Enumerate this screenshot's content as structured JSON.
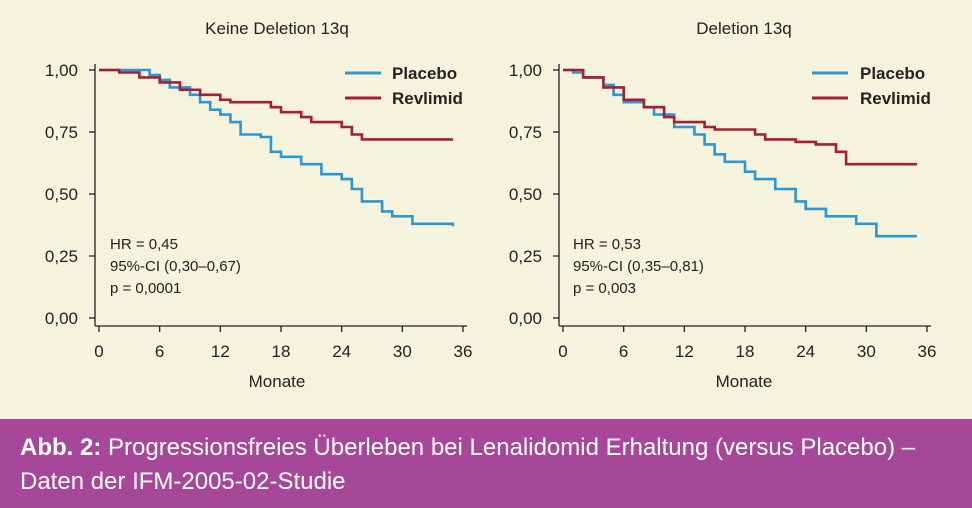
{
  "colors": {
    "background": "#f6f3dc",
    "placebo": "#2a98d6",
    "revlimid": "#a31f38",
    "caption_bg": "#a6479a",
    "caption_text": "#ffffff",
    "axis": "#222222"
  },
  "chart_data": [
    {
      "type": "line",
      "title": "Keine Deletion 13q",
      "xlabel": "Monate",
      "ylabel": "",
      "xlim": [
        0,
        36
      ],
      "ylim": [
        0,
        1
      ],
      "x_ticks": [
        "0",
        "6",
        "12",
        "18",
        "24",
        "30",
        "36"
      ],
      "y_ticks": [
        "0,00",
        "0,25",
        "0,50",
        "0,75",
        "1,00"
      ],
      "legend_position": "top-right",
      "stats": [
        "HR = 0,45",
        "95%-CI (0,30–0,67)",
        "p = 0,0001"
      ],
      "series": [
        {
          "name": "Placebo",
          "color": "#2a98d6",
          "points": [
            [
              0,
              1.0
            ],
            [
              3,
              1.0
            ],
            [
              5,
              0.98
            ],
            [
              6,
              0.96
            ],
            [
              7,
              0.93
            ],
            [
              9,
              0.9
            ],
            [
              10,
              0.87
            ],
            [
              11,
              0.84
            ],
            [
              12,
              0.82
            ],
            [
              13,
              0.79
            ],
            [
              14,
              0.74
            ],
            [
              16,
              0.73
            ],
            [
              17,
              0.67
            ],
            [
              18,
              0.65
            ],
            [
              20,
              0.62
            ],
            [
              22,
              0.58
            ],
            [
              24,
              0.56
            ],
            [
              25,
              0.52
            ],
            [
              26,
              0.47
            ],
            [
              28,
              0.43
            ],
            [
              29,
              0.41
            ],
            [
              31,
              0.38
            ],
            [
              35,
              0.37
            ]
          ]
        },
        {
          "name": "Revlimid",
          "color": "#a31f38",
          "points": [
            [
              0,
              1.0
            ],
            [
              2,
              0.99
            ],
            [
              4,
              0.97
            ],
            [
              6,
              0.95
            ],
            [
              8,
              0.92
            ],
            [
              10,
              0.9
            ],
            [
              12,
              0.88
            ],
            [
              13,
              0.87
            ],
            [
              17,
              0.85
            ],
            [
              18,
              0.83
            ],
            [
              20,
              0.81
            ],
            [
              21,
              0.79
            ],
            [
              24,
              0.77
            ],
            [
              25,
              0.74
            ],
            [
              26,
              0.72
            ],
            [
              35,
              0.72
            ]
          ]
        }
      ]
    },
    {
      "type": "line",
      "title": "Deletion 13q",
      "xlabel": "Monate",
      "ylabel": "",
      "xlim": [
        0,
        36
      ],
      "ylim": [
        0,
        1
      ],
      "x_ticks": [
        "0",
        "6",
        "12",
        "18",
        "24",
        "30",
        "36"
      ],
      "y_ticks": [
        "0,00",
        "0,25",
        "0,50",
        "0,75",
        "1,00"
      ],
      "legend_position": "top-right",
      "stats": [
        "HR = 0,53",
        "95%-CI (0,35–0,81)",
        "p = 0,003"
      ],
      "series": [
        {
          "name": "Placebo",
          "color": "#2a98d6",
          "points": [
            [
              0,
              1.0
            ],
            [
              1,
              0.99
            ],
            [
              2,
              0.97
            ],
            [
              4,
              0.94
            ],
            [
              5,
              0.9
            ],
            [
              6,
              0.87
            ],
            [
              8,
              0.85
            ],
            [
              9,
              0.82
            ],
            [
              11,
              0.77
            ],
            [
              13,
              0.74
            ],
            [
              14,
              0.7
            ],
            [
              15,
              0.66
            ],
            [
              16,
              0.63
            ],
            [
              18,
              0.59
            ],
            [
              19,
              0.56
            ],
            [
              21,
              0.52
            ],
            [
              23,
              0.47
            ],
            [
              24,
              0.44
            ],
            [
              26,
              0.41
            ],
            [
              29,
              0.38
            ],
            [
              31,
              0.33
            ],
            [
              35,
              0.33
            ]
          ]
        },
        {
          "name": "Revlimid",
          "color": "#a31f38",
          "points": [
            [
              0,
              1.0
            ],
            [
              2,
              0.97
            ],
            [
              4,
              0.93
            ],
            [
              6,
              0.88
            ],
            [
              8,
              0.85
            ],
            [
              10,
              0.81
            ],
            [
              11,
              0.79
            ],
            [
              14,
              0.77
            ],
            [
              15,
              0.76
            ],
            [
              19,
              0.74
            ],
            [
              20,
              0.72
            ],
            [
              23,
              0.71
            ],
            [
              25,
              0.7
            ],
            [
              27,
              0.67
            ],
            [
              28,
              0.62
            ],
            [
              35,
              0.62
            ]
          ]
        }
      ]
    }
  ],
  "caption": {
    "label": "Abb. 2:",
    "line1": " Progressionsfreies Überleben bei Lenalidomid Erhaltung (versus Placebo) –",
    "line2": "Daten der IFM-2005-02-Studie"
  }
}
